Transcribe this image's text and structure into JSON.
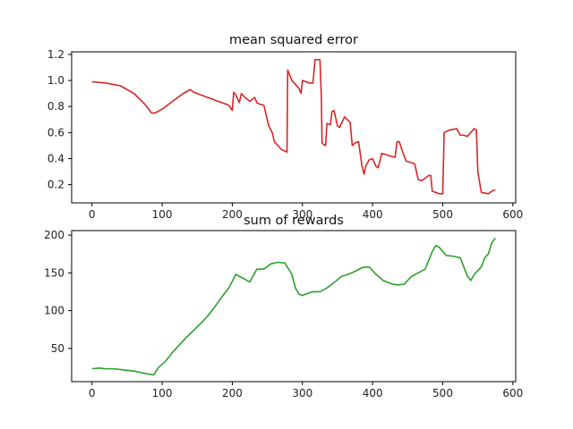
{
  "chart_data": [
    {
      "type": "line",
      "title": "mean squared error",
      "xlabel": "",
      "ylabel": "",
      "xlim": [
        -29,
        604
      ],
      "ylim": [
        0.06,
        1.22
      ],
      "xticks": [
        0,
        100,
        200,
        300,
        400,
        500,
        600
      ],
      "yticks": [
        0.2,
        0.4,
        0.6,
        0.8,
        1.0,
        1.2
      ],
      "ytick_labels": [
        "0.2",
        "0.4",
        "0.6",
        "0.8",
        "1.0",
        "1.2"
      ],
      "grid": false,
      "series": [
        {
          "name": "mean squared error",
          "color": "#d62728",
          "x": [
            0,
            20,
            40,
            60,
            75,
            85,
            90,
            100,
            110,
            120,
            130,
            140,
            145,
            155,
            165,
            180,
            190,
            195,
            200,
            202,
            205,
            210,
            213,
            218,
            225,
            232,
            235,
            238,
            245,
            252,
            255,
            257,
            260,
            265,
            270,
            278,
            279,
            285,
            295,
            298,
            300,
            310,
            315,
            318,
            325,
            327,
            328,
            330,
            333,
            335,
            340,
            342,
            345,
            350,
            353,
            360,
            368,
            371,
            375,
            380,
            385,
            388,
            390,
            395,
            400,
            405,
            408,
            413,
            420,
            425,
            432,
            435,
            438,
            443,
            448,
            455,
            460,
            465,
            470,
            480,
            483,
            485,
            495,
            500,
            502,
            510,
            520,
            525,
            530,
            535,
            540,
            545,
            548,
            550,
            555,
            565,
            570,
            575
          ],
          "y": [
            0.99,
            0.98,
            0.96,
            0.9,
            0.82,
            0.75,
            0.75,
            0.78,
            0.82,
            0.86,
            0.9,
            0.93,
            0.91,
            0.89,
            0.87,
            0.84,
            0.82,
            0.81,
            0.77,
            0.91,
            0.89,
            0.83,
            0.9,
            0.87,
            0.84,
            0.87,
            0.83,
            0.82,
            0.81,
            0.65,
            0.62,
            0.6,
            0.53,
            0.5,
            0.47,
            0.45,
            1.08,
            1.0,
            0.94,
            0.9,
            1.0,
            0.98,
            0.98,
            1.16,
            1.16,
            0.87,
            0.52,
            0.51,
            0.5,
            0.67,
            0.66,
            0.76,
            0.77,
            0.65,
            0.64,
            0.72,
            0.68,
            0.5,
            0.52,
            0.53,
            0.34,
            0.28,
            0.34,
            0.39,
            0.4,
            0.34,
            0.33,
            0.44,
            0.43,
            0.42,
            0.41,
            0.53,
            0.53,
            0.45,
            0.38,
            0.37,
            0.36,
            0.24,
            0.23,
            0.27,
            0.27,
            0.15,
            0.13,
            0.13,
            0.6,
            0.62,
            0.63,
            0.58,
            0.58,
            0.57,
            0.6,
            0.63,
            0.62,
            0.3,
            0.14,
            0.13,
            0.15,
            0.16
          ]
        }
      ]
    },
    {
      "type": "line",
      "title": "sum of rewards",
      "xlabel": "",
      "ylabel": "",
      "xlim": [
        -29,
        604
      ],
      "ylim": [
        6,
        206
      ],
      "xticks": [
        0,
        100,
        200,
        300,
        400,
        500,
        600
      ],
      "yticks": [
        50,
        100,
        150,
        200
      ],
      "ytick_labels": [
        "50",
        "100",
        "150",
        "200"
      ],
      "grid": false,
      "series": [
        {
          "name": "sum of rewards",
          "color": "#2ca02c",
          "x": [
            0,
            10,
            20,
            30,
            40,
            50,
            60,
            70,
            80,
            88,
            95,
            105,
            115,
            125,
            135,
            145,
            155,
            165,
            175,
            185,
            195,
            205,
            215,
            225,
            235,
            245,
            255,
            265,
            275,
            285,
            290,
            295,
            300,
            305,
            315,
            325,
            335,
            345,
            355,
            365,
            375,
            385,
            395,
            405,
            415,
            425,
            435,
            445,
            455,
            465,
            475,
            485,
            490,
            495,
            505,
            515,
            525,
            535,
            540,
            545,
            555,
            560,
            565,
            570,
            575
          ],
          "y": [
            23,
            24,
            23,
            23,
            22,
            21,
            20,
            18,
            16,
            15,
            25,
            33,
            45,
            55,
            65,
            74,
            83,
            93,
            105,
            118,
            130,
            148,
            143,
            138,
            155,
            155,
            162,
            164,
            163,
            148,
            130,
            122,
            120,
            122,
            125,
            125,
            130,
            137,
            145,
            148,
            152,
            157,
            158,
            148,
            140,
            136,
            134,
            135,
            145,
            150,
            155,
            178,
            186,
            184,
            173,
            172,
            170,
            146,
            140,
            148,
            158,
            170,
            175,
            190,
            196
          ]
        }
      ]
    }
  ]
}
